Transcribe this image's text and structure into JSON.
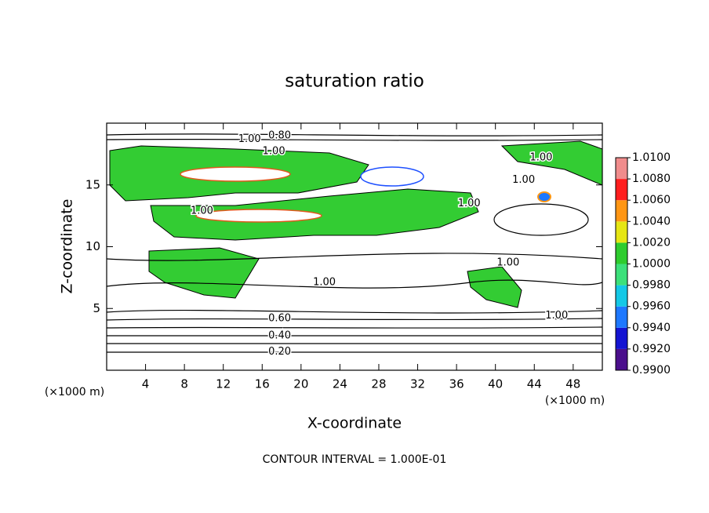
{
  "chart_data": {
    "type": "contour",
    "title": "saturation ratio",
    "x_label": "X-coordinate",
    "y_label": "Z-coordinate",
    "x_unit": "(×1000 m)",
    "y_unit": "(×1000 m)",
    "footer": "CONTOUR INTERVAL = 1.000E-01",
    "xlim": [
      0,
      51
    ],
    "ylim": [
      0,
      20
    ],
    "xticks": [
      4,
      8,
      12,
      16,
      20,
      24,
      28,
      32,
      36,
      40,
      44,
      48
    ],
    "yticks": [
      5,
      10,
      15
    ],
    "colorbar": {
      "lim": [
        0.99,
        1.01
      ],
      "ticks": [
        {
          "value": 0.99,
          "label": "0.9900"
        },
        {
          "value": 0.992,
          "label": "0.9920"
        },
        {
          "value": 0.994,
          "label": "0.9940"
        },
        {
          "value": 0.996,
          "label": "0.9960"
        },
        {
          "value": 0.998,
          "label": "0.9980"
        },
        {
          "value": 1.0,
          "label": "1.0000"
        },
        {
          "value": 1.002,
          "label": "1.0020"
        },
        {
          "value": 1.004,
          "label": "1.0040"
        },
        {
          "value": 1.006,
          "label": "1.0060"
        },
        {
          "value": 1.008,
          "label": "1.0080"
        },
        {
          "value": 1.01,
          "label": "1.0100"
        }
      ],
      "colors": [
        "#4b0f8c",
        "#1414d2",
        "#1e78ff",
        "#14c8e6",
        "#3ce07a",
        "#2ecc2e",
        "#e6e614",
        "#ff9614",
        "#ff1e1e",
        "#f08c8c"
      ]
    },
    "contour_labels": [
      {
        "label": "0.80",
        "x": 17.8,
        "y": 19.0
      },
      {
        "label": "1.00",
        "x": 14.7,
        "y": 18.7
      },
      {
        "label": "1.00",
        "x": 17.2,
        "y": 17.7
      },
      {
        "label": "1.00",
        "x": 44.7,
        "y": 17.2
      },
      {
        "label": "1.00",
        "x": 42.9,
        "y": 15.4
      },
      {
        "label": "1.00",
        "x": 9.8,
        "y": 12.9
      },
      {
        "label": "1.00",
        "x": 37.3,
        "y": 13.5
      },
      {
        "label": "1.00",
        "x": 22.4,
        "y": 7.1
      },
      {
        "label": "1.00",
        "x": 41.3,
        "y": 8.7
      },
      {
        "label": "1.00",
        "x": 46.3,
        "y": 4.4
      },
      {
        "label": "0.60",
        "x": 17.8,
        "y": 4.2
      },
      {
        "label": "0.40",
        "x": 17.8,
        "y": 2.8
      },
      {
        "label": "0.20",
        "x": 17.8,
        "y": 1.5
      }
    ]
  }
}
